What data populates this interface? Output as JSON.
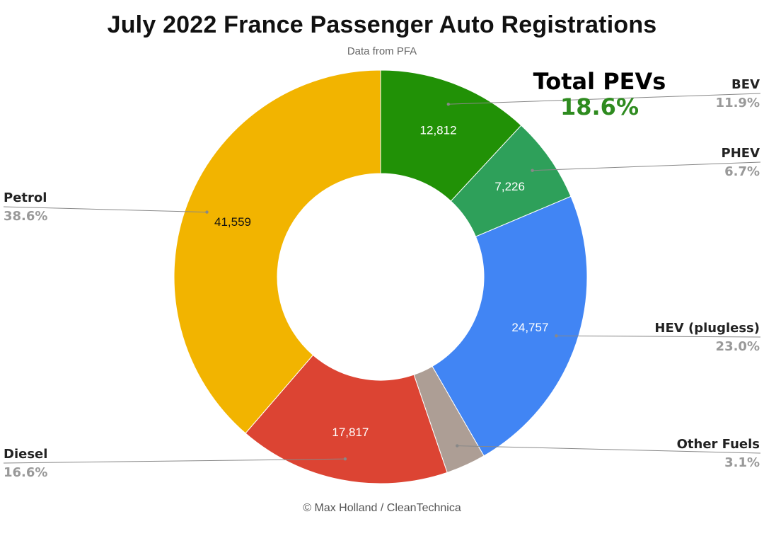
{
  "title": "July 2022 France Passenger Auto Registrations",
  "subtitle": "Data from PFA",
  "credit": "© Max Holland / CleanTechnica",
  "callout": {
    "label": "Total PEVs",
    "value": "18.6%",
    "color": "#2e8b1f"
  },
  "chart_data": {
    "type": "pie",
    "donut": true,
    "title": "July 2022 France Passenger Auto Registrations",
    "subtitle": "Data from PFA",
    "slices": [
      {
        "name": "BEV",
        "value": 12812,
        "value_label": "12,812",
        "percent": "11.9%",
        "color": "#219106",
        "text_color": "#ffffff"
      },
      {
        "name": "PHEV",
        "value": 7226,
        "value_label": "7,226",
        "percent": "6.7%",
        "color": "#2ea05a",
        "text_color": "#ffffff"
      },
      {
        "name": "HEV (plugless)",
        "value": 24757,
        "value_label": "24,757",
        "percent": "23.0%",
        "color": "#4185f4",
        "text_color": "#ffffff"
      },
      {
        "name": "Other Fuels",
        "value": 3343,
        "value_label": "",
        "percent": "3.1%",
        "color": "#ad9e95",
        "text_color": "#ffffff"
      },
      {
        "name": "Diesel",
        "value": 17817,
        "value_label": "17,817",
        "percent": "16.6%",
        "color": "#dc4433",
        "text_color": "#ffffff"
      },
      {
        "name": "Petrol",
        "value": 41559,
        "value_label": "41,559",
        "percent": "38.6%",
        "color": "#f2b400",
        "text_color": "#111111"
      }
    ]
  }
}
